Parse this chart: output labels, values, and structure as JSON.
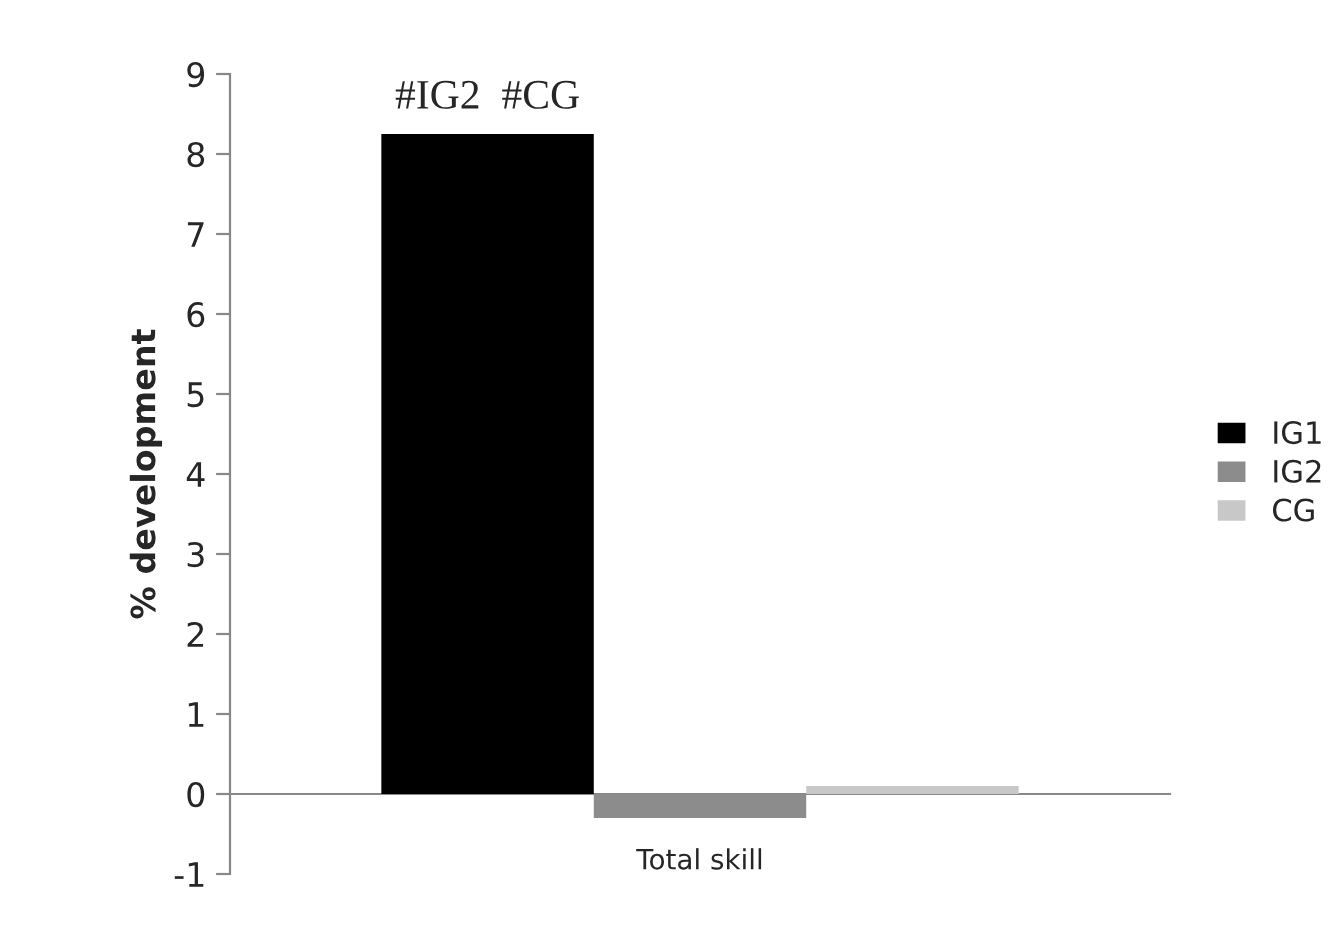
{
  "chart_data": {
    "type": "bar",
    "categories": [
      "Total skill"
    ],
    "series": [
      {
        "name": "IG1",
        "color": "#000000",
        "values": [
          8.25
        ]
      },
      {
        "name": "IG2",
        "color": "#8c8c8c",
        "values": [
          -0.3
        ]
      },
      {
        "name": "CG",
        "color": "#c8c8c8",
        "values": [
          0.1
        ]
      }
    ],
    "ylabel": "% development",
    "ylim": [
      -1,
      9
    ],
    "yticks": [
      -1,
      0,
      1,
      2,
      3,
      4,
      5,
      6,
      7,
      8,
      9
    ],
    "annotations": [
      "#IG2  #CG"
    ],
    "legend": "right"
  }
}
